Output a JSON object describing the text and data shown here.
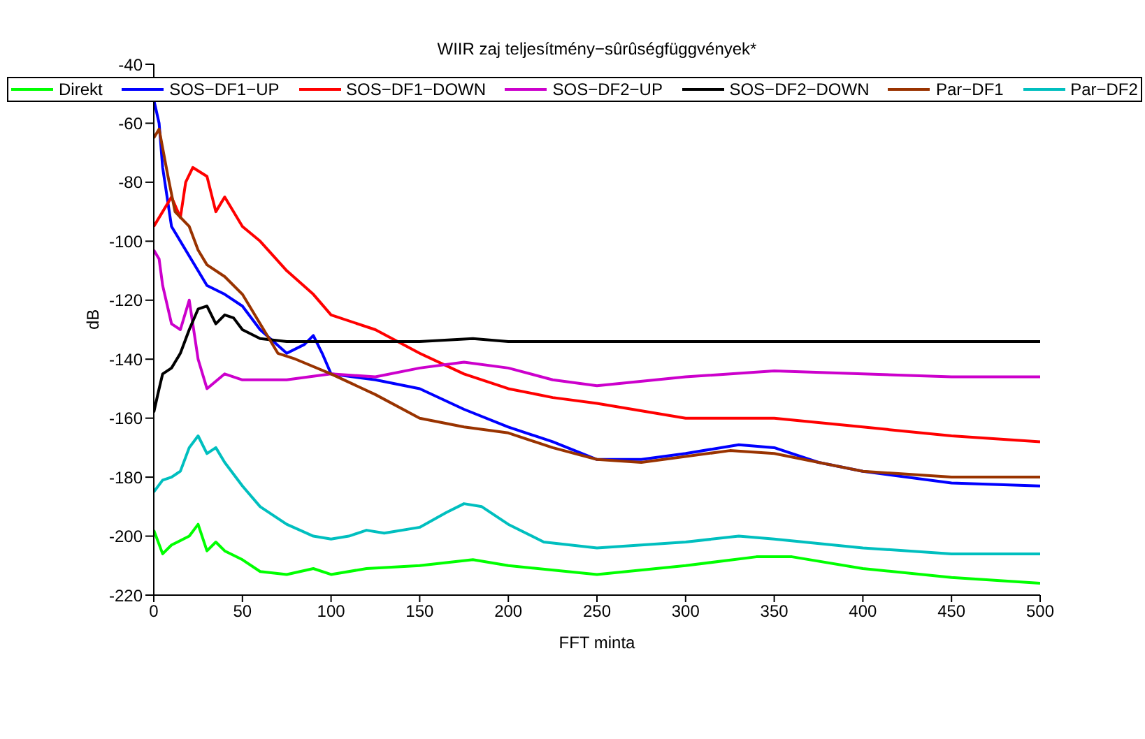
{
  "chart_data": {
    "type": "line",
    "title": "WIIR zaj teljesítmény−sûrûségfüggvények*",
    "xlabel": "FFT minta",
    "ylabel": "dB",
    "xlim": [
      0,
      500
    ],
    "xticks": [
      0,
      50,
      100,
      150,
      200,
      250,
      300,
      350,
      400,
      450,
      500
    ],
    "ylim": [
      -220,
      -40
    ],
    "yticks": [
      -220,
      -200,
      -180,
      -160,
      -140,
      -120,
      -100,
      -80,
      -60,
      -40
    ],
    "legend": "top",
    "grid": false,
    "marker": "none",
    "series": [
      {
        "name": "Direkt",
        "color": "#00ff00",
        "x": [
          0,
          5,
          10,
          20,
          25,
          30,
          35,
          40,
          50,
          60,
          75,
          90,
          100,
          120,
          150,
          180,
          200,
          250,
          300,
          340,
          360,
          400,
          450,
          500
        ],
        "values": [
          -198,
          -206,
          -203,
          -200,
          -196,
          -205,
          -202,
          -205,
          -208,
          -212,
          -213,
          -211,
          -213,
          -211,
          -210,
          -208,
          -210,
          -213,
          -210,
          -207,
          -207,
          -211,
          -214,
          -216
        ]
      },
      {
        "name": "SOS−DF1−UP",
        "color": "#0000ff",
        "x": [
          0,
          3,
          5,
          10,
          20,
          30,
          40,
          50,
          60,
          75,
          85,
          90,
          95,
          100,
          125,
          150,
          175,
          200,
          225,
          250,
          275,
          300,
          330,
          350,
          375,
          400,
          450,
          500
        ],
        "values": [
          -52,
          -60,
          -75,
          -95,
          -105,
          -115,
          -118,
          -122,
          -130,
          -138,
          -135,
          -132,
          -138,
          -145,
          -147,
          -150,
          -157,
          -163,
          -168,
          -174,
          -174,
          -172,
          -169,
          -170,
          -175,
          -178,
          -182,
          -183
        ]
      },
      {
        "name": "SOS−DF1−DOWN",
        "color": "#ff0000",
        "x": [
          0,
          5,
          10,
          15,
          18,
          22,
          30,
          35,
          40,
          50,
          60,
          75,
          90,
          100,
          125,
          150,
          175,
          200,
          225,
          250,
          300,
          350,
          400,
          450,
          500
        ],
        "values": [
          -95,
          -90,
          -85,
          -92,
          -80,
          -75,
          -78,
          -90,
          -85,
          -95,
          -100,
          -110,
          -118,
          -125,
          -130,
          -138,
          -145,
          -150,
          -153,
          -155,
          -160,
          -160,
          -163,
          -166,
          -168
        ]
      },
      {
        "name": "SOS−DF2−UP",
        "color": "#cc00cc",
        "x": [
          0,
          3,
          5,
          10,
          15,
          20,
          25,
          30,
          40,
          50,
          75,
          100,
          125,
          150,
          175,
          200,
          225,
          250,
          300,
          350,
          400,
          450,
          500
        ],
        "values": [
          -103,
          -106,
          -115,
          -128,
          -130,
          -120,
          -140,
          -150,
          -145,
          -147,
          -147,
          -145,
          -146,
          -143,
          -141,
          -143,
          -147,
          -149,
          -146,
          -144,
          -145,
          -146,
          -146
        ]
      },
      {
        "name": "SOS−DF2−DOWN",
        "color": "#000000",
        "x": [
          0,
          3,
          5,
          10,
          15,
          20,
          25,
          30,
          35,
          40,
          45,
          50,
          60,
          75,
          100,
          150,
          180,
          200,
          300,
          400,
          500
        ],
        "values": [
          -158,
          -150,
          -145,
          -143,
          -138,
          -130,
          -123,
          -122,
          -128,
          -125,
          -126,
          -130,
          -133,
          -134,
          -134,
          -134,
          -133,
          -134,
          -134,
          -134,
          -134
        ]
      },
      {
        "name": "Par−DF1",
        "color": "#993300",
        "x": [
          0,
          3,
          8,
          12,
          20,
          25,
          30,
          40,
          50,
          60,
          70,
          80,
          100,
          125,
          150,
          175,
          200,
          225,
          250,
          275,
          300,
          325,
          350,
          375,
          400,
          450,
          500
        ],
        "values": [
          -65,
          -62,
          -78,
          -90,
          -95,
          -103,
          -108,
          -112,
          -118,
          -128,
          -138,
          -140,
          -145,
          -152,
          -160,
          -163,
          -165,
          -170,
          -174,
          -175,
          -173,
          -171,
          -172,
          -175,
          -178,
          -180,
          -180
        ]
      },
      {
        "name": "Par−DF2",
        "color": "#00bfbf",
        "x": [
          0,
          5,
          10,
          15,
          20,
          25,
          30,
          35,
          40,
          50,
          60,
          75,
          90,
          100,
          110,
          120,
          130,
          150,
          165,
          175,
          185,
          200,
          220,
          250,
          300,
          330,
          350,
          400,
          450,
          500
        ],
        "values": [
          -185,
          -181,
          -180,
          -178,
          -170,
          -166,
          -172,
          -170,
          -175,
          -183,
          -190,
          -196,
          -200,
          -201,
          -200,
          -198,
          -199,
          -197,
          -192,
          -189,
          -190,
          -196,
          -202,
          -204,
          -202,
          -200,
          -201,
          -204,
          -206,
          -206
        ]
      }
    ]
  }
}
